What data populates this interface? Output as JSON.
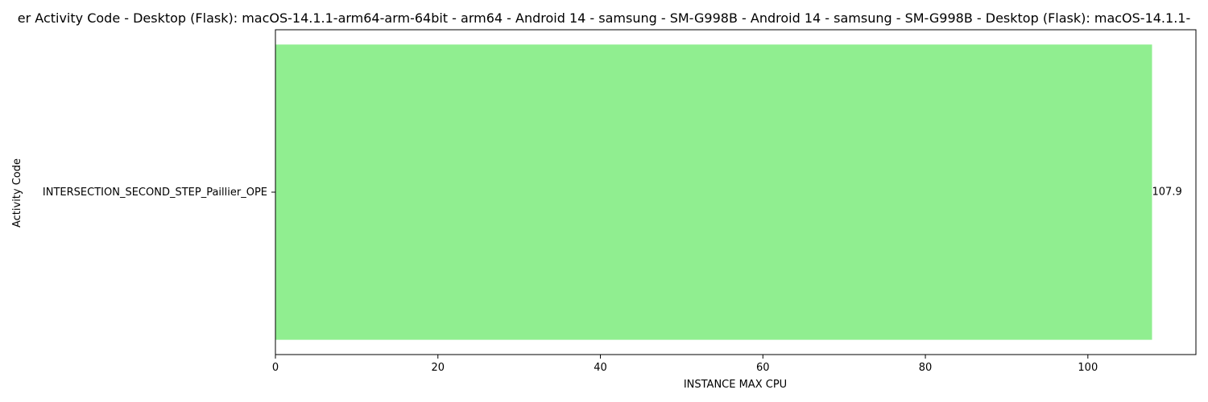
{
  "chart_data": {
    "type": "bar",
    "orientation": "horizontal",
    "title": "er Activity Code - Desktop (Flask): macOS-14.1.1-arm64-arm-64bit - arm64 - Android 14 - samsung - SM-G998B - Android 14 - samsung - SM-G998B - Desktop (Flask): macOS-14.1.1-",
    "xlabel": "INSTANCE MAX CPU",
    "ylabel": "Activity Code",
    "categories": [
      "INTERSECTION_SECOND_STEP_Paillier_OPE"
    ],
    "values": [
      107.9
    ],
    "value_labels": [
      "107.9"
    ],
    "xlim": [
      0,
      113.3
    ],
    "xticks": [
      0,
      20,
      40,
      60,
      80,
      100
    ],
    "grid": false,
    "colors": {
      "bar": "#90ee90",
      "axis": "#000000",
      "background": "#ffffff"
    }
  }
}
